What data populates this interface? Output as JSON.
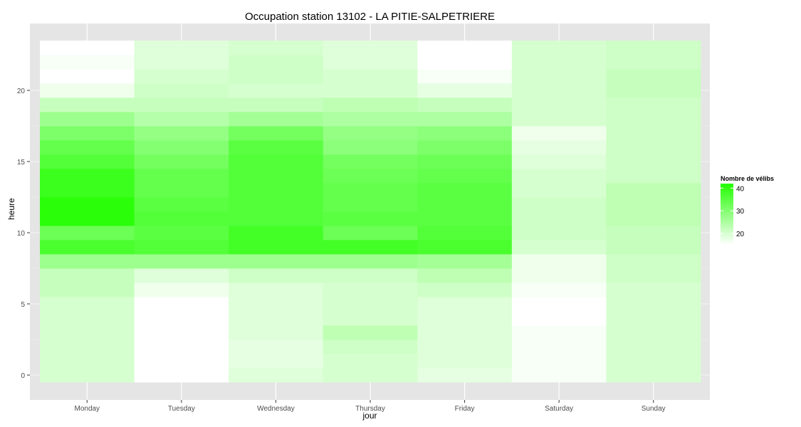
{
  "chart_data": {
    "type": "heatmap",
    "title": "Occupation station 13102 - LA PITIE-SALPETRIERE",
    "xlabel": "jour",
    "ylabel": "heure",
    "x": [
      "Monday",
      "Tuesday",
      "Wednesday",
      "Thursday",
      "Friday",
      "Saturday",
      "Sunday"
    ],
    "y": [
      0,
      1,
      2,
      3,
      4,
      5,
      6,
      7,
      8,
      9,
      10,
      11,
      12,
      13,
      14,
      15,
      16,
      17,
      18,
      19,
      20,
      21,
      22,
      23
    ],
    "ylim": [
      -0.5,
      23.5
    ],
    "y_ticks": [
      0,
      5,
      10,
      15,
      20
    ],
    "values": [
      [
        20,
        15,
        19,
        20,
        18,
        16,
        20
      ],
      [
        20,
        15,
        18,
        20,
        19,
        16,
        20
      ],
      [
        20,
        15,
        18,
        21,
        19,
        16,
        20
      ],
      [
        20,
        15,
        19,
        23,
        19,
        16,
        20
      ],
      [
        20,
        15,
        19,
        20,
        19,
        15,
        20
      ],
      [
        20,
        15,
        19,
        20,
        19,
        15,
        20
      ],
      [
        22,
        17,
        19,
        20,
        21,
        16,
        20
      ],
      [
        22,
        19,
        21,
        21,
        23,
        17,
        21
      ],
      [
        27,
        27,
        27,
        27,
        26,
        17,
        21
      ],
      [
        37,
        36,
        38,
        38,
        37,
        20,
        22
      ],
      [
        33,
        35,
        38,
        33,
        36,
        21,
        22
      ],
      [
        41,
        36,
        36,
        35,
        35,
        21,
        23
      ],
      [
        41,
        35,
        36,
        34,
        35,
        21,
        23
      ],
      [
        39,
        34,
        36,
        34,
        35,
        20,
        23
      ],
      [
        39,
        34,
        36,
        33,
        34,
        20,
        21
      ],
      [
        36,
        32,
        36,
        32,
        33,
        19,
        21
      ],
      [
        34,
        30,
        35,
        29,
        31,
        18,
        21
      ],
      [
        31,
        28,
        32,
        28,
        29,
        17,
        21
      ],
      [
        27,
        24,
        26,
        25,
        25,
        20,
        21
      ],
      [
        22,
        22,
        22,
        23,
        22,
        20,
        21
      ],
      [
        17,
        21,
        20,
        20,
        18,
        20,
        22
      ],
      [
        15,
        20,
        21,
        20,
        16,
        20,
        22
      ],
      [
        16,
        19,
        21,
        19,
        15,
        20,
        21
      ],
      [
        15,
        19,
        20,
        19,
        15,
        20,
        21
      ]
    ],
    "colorbar": {
      "title": "Nombre de vélibs",
      "low_color": "#ffffff",
      "high_color": "#22ff00",
      "ticks": [
        20,
        30,
        40
      ]
    },
    "range": [
      15,
      42
    ],
    "grid": true,
    "legend": "right"
  }
}
